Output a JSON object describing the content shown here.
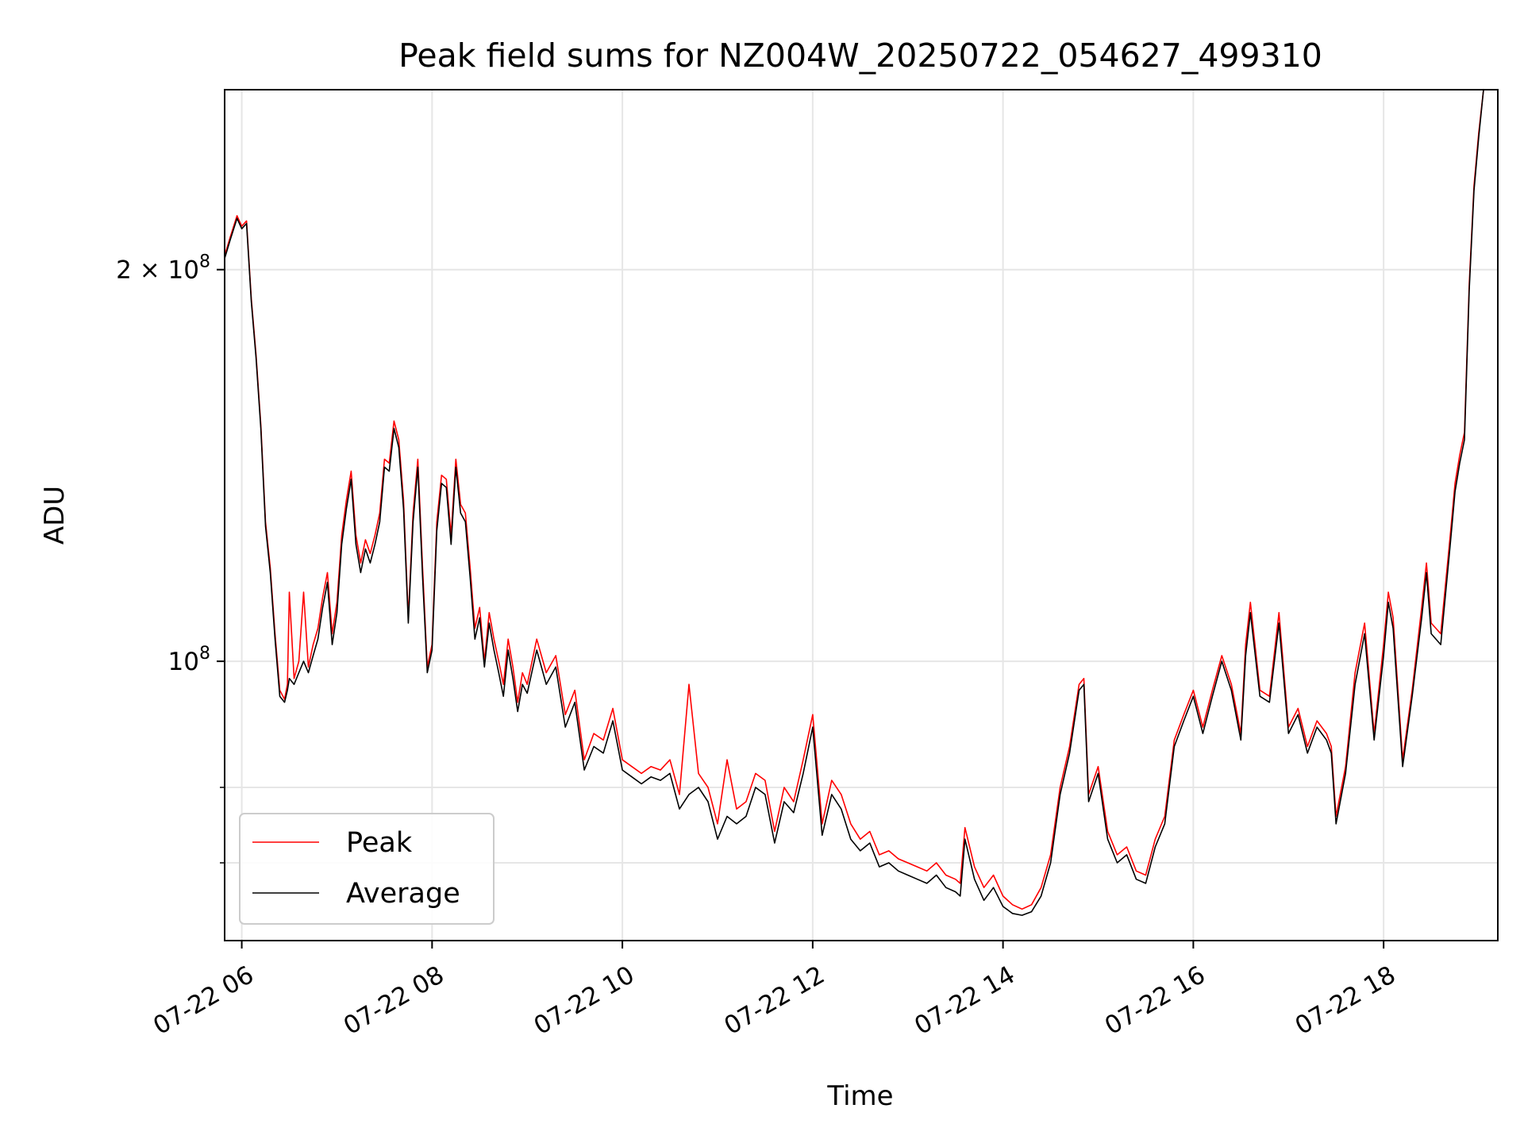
{
  "chart_data": {
    "type": "line",
    "title": "Peak field sums for NZ004W_20250722_054627_499310",
    "xlabel": "Time",
    "ylabel": "ADU",
    "x_unit": "hour of 2025-07-22",
    "xlim": [
      5.82,
      19.2
    ],
    "ylim": [
      61000000,
      275000000
    ],
    "y_scale": "log",
    "grid": true,
    "x_ticks": [
      {
        "value": 6,
        "label": "07-22 06"
      },
      {
        "value": 8,
        "label": "07-22 08"
      },
      {
        "value": 10,
        "label": "07-22 10"
      },
      {
        "value": 12,
        "label": "07-22 12"
      },
      {
        "value": 14,
        "label": "07-22 14"
      },
      {
        "value": 16,
        "label": "07-22 16"
      },
      {
        "value": 18,
        "label": "07-22 18"
      }
    ],
    "y_ticks": [
      {
        "value": 100000000,
        "label_base": "10",
        "label_exp": "8",
        "label_prefix": ""
      },
      {
        "value": 200000000,
        "label_base": "10",
        "label_exp": "8",
        "label_prefix": "2 × "
      }
    ],
    "y_minor_ticks": [
      70000000,
      80000000
    ],
    "legend": {
      "position": "lower-left",
      "entries": [
        {
          "name": "Peak",
          "color": "#ff0000"
        },
        {
          "name": "Average",
          "color": "#000000"
        }
      ]
    },
    "series": [
      {
        "name": "Peak",
        "color": "#ff0000",
        "x": [
          5.82,
          5.88,
          5.95,
          6.0,
          6.05,
          6.1,
          6.15,
          6.2,
          6.25,
          6.3,
          6.35,
          6.4,
          6.45,
          6.48,
          6.5,
          6.55,
          6.6,
          6.65,
          6.7,
          6.75,
          6.8,
          6.85,
          6.9,
          6.95,
          7.0,
          7.05,
          7.1,
          7.15,
          7.2,
          7.25,
          7.3,
          7.35,
          7.4,
          7.45,
          7.5,
          7.55,
          7.6,
          7.65,
          7.7,
          7.75,
          7.8,
          7.85,
          7.9,
          7.95,
          8.0,
          8.05,
          8.1,
          8.15,
          8.2,
          8.25,
          8.3,
          8.35,
          8.4,
          8.45,
          8.5,
          8.55,
          8.6,
          8.65,
          8.7,
          8.75,
          8.8,
          8.85,
          8.9,
          8.95,
          9.0,
          9.1,
          9.2,
          9.3,
          9.4,
          9.5,
          9.6,
          9.7,
          9.8,
          9.9,
          10.0,
          10.1,
          10.2,
          10.3,
          10.4,
          10.5,
          10.6,
          10.7,
          10.8,
          10.9,
          11.0,
          11.1,
          11.2,
          11.3,
          11.4,
          11.5,
          11.6,
          11.7,
          11.8,
          11.9,
          12.0,
          12.1,
          12.2,
          12.3,
          12.4,
          12.5,
          12.6,
          12.7,
          12.8,
          12.9,
          13.0,
          13.1,
          13.2,
          13.3,
          13.4,
          13.5,
          13.55,
          13.6,
          13.7,
          13.8,
          13.9,
          14.0,
          14.1,
          14.2,
          14.3,
          14.4,
          14.5,
          14.6,
          14.7,
          14.8,
          14.85,
          14.9,
          15.0,
          15.1,
          15.2,
          15.3,
          15.4,
          15.5,
          15.6,
          15.7,
          15.8,
          15.9,
          16.0,
          16.1,
          16.2,
          16.3,
          16.4,
          16.5,
          16.55,
          16.6,
          16.7,
          16.8,
          16.9,
          17.0,
          17.1,
          17.2,
          17.3,
          17.4,
          17.45,
          17.5,
          17.6,
          17.7,
          17.8,
          17.9,
          18.0,
          18.05,
          18.1,
          18.2,
          18.3,
          18.4,
          18.45,
          18.5,
          18.6,
          18.7,
          18.75,
          18.8,
          18.85,
          18.9,
          18.95,
          19.0,
          19.05,
          19.1,
          19.2
        ],
        "y": [
          205000000,
          212000000,
          220000000,
          216000000,
          218000000,
          190000000,
          172000000,
          152000000,
          128000000,
          118000000,
          105000000,
          95000000,
          93500000,
          96000000,
          113000000,
          97000000,
          100000000,
          113000000,
          99000000,
          103000000,
          106000000,
          112000000,
          117000000,
          105000000,
          111000000,
          125000000,
          133000000,
          140000000,
          125000000,
          119000000,
          124000000,
          121000000,
          125000000,
          130000000,
          143000000,
          142000000,
          153000000,
          148000000,
          133000000,
          108000000,
          130000000,
          143000000,
          118000000,
          99000000,
          103000000,
          128000000,
          139000000,
          138000000,
          125000000,
          143000000,
          132000000,
          130000000,
          118000000,
          106000000,
          110000000,
          100000000,
          109000000,
          104000000,
          100000000,
          96000000,
          104000000,
          99000000,
          93000000,
          98000000,
          96000000,
          104000000,
          98000000,
          101000000,
          91000000,
          95000000,
          84000000,
          88000000,
          87000000,
          92000000,
          84000000,
          83000000,
          82000000,
          83000000,
          82500000,
          84000000,
          79000000,
          96000000,
          82000000,
          80000000,
          75000000,
          84000000,
          77000000,
          78000000,
          82000000,
          81000000,
          74000000,
          80000000,
          78000000,
          84000000,
          91000000,
          75000000,
          81000000,
          79000000,
          75000000,
          73000000,
          74000000,
          71000000,
          71500000,
          70500000,
          70000000,
          69500000,
          69000000,
          70000000,
          68500000,
          68000000,
          67500000,
          74500000,
          69500000,
          67000000,
          68500000,
          66000000,
          65000000,
          64500000,
          65000000,
          67000000,
          71000000,
          80000000,
          86000000,
          96000000,
          97000000,
          79000000,
          83000000,
          74000000,
          71000000,
          72000000,
          69000000,
          68500000,
          73000000,
          76000000,
          87000000,
          91000000,
          95000000,
          89000000,
          95000000,
          101000000,
          96000000,
          88000000,
          103000000,
          111000000,
          95000000,
          94000000,
          109000000,
          89000000,
          92000000,
          86000000,
          90000000,
          88000000,
          86000000,
          76000000,
          83000000,
          98000000,
          107000000,
          88000000,
          103000000,
          113000000,
          108000000,
          84000000,
          95000000,
          110000000,
          119000000,
          107000000,
          105000000,
          125000000,
          137000000,
          144000000,
          150000000,
          195000000,
          232000000,
          255000000,
          275000000,
          275000000,
          275000000
        ]
      },
      {
        "name": "Average",
        "color": "#000000",
        "x": [
          5.82,
          5.88,
          5.95,
          6.0,
          6.05,
          6.1,
          6.15,
          6.2,
          6.25,
          6.3,
          6.35,
          6.4,
          6.45,
          6.48,
          6.5,
          6.55,
          6.6,
          6.65,
          6.7,
          6.75,
          6.8,
          6.85,
          6.9,
          6.95,
          7.0,
          7.05,
          7.1,
          7.15,
          7.2,
          7.25,
          7.3,
          7.35,
          7.4,
          7.45,
          7.5,
          7.55,
          7.6,
          7.65,
          7.7,
          7.75,
          7.8,
          7.85,
          7.9,
          7.95,
          8.0,
          8.05,
          8.1,
          8.15,
          8.2,
          8.25,
          8.3,
          8.35,
          8.4,
          8.45,
          8.5,
          8.55,
          8.6,
          8.65,
          8.7,
          8.75,
          8.8,
          8.85,
          8.9,
          8.95,
          9.0,
          9.1,
          9.2,
          9.3,
          9.4,
          9.5,
          9.6,
          9.7,
          9.8,
          9.9,
          10.0,
          10.1,
          10.2,
          10.3,
          10.4,
          10.5,
          10.6,
          10.7,
          10.8,
          10.9,
          11.0,
          11.1,
          11.2,
          11.3,
          11.4,
          11.5,
          11.6,
          11.7,
          11.8,
          11.9,
          12.0,
          12.1,
          12.2,
          12.3,
          12.4,
          12.5,
          12.6,
          12.7,
          12.8,
          12.9,
          13.0,
          13.1,
          13.2,
          13.3,
          13.4,
          13.5,
          13.55,
          13.6,
          13.7,
          13.8,
          13.9,
          14.0,
          14.1,
          14.2,
          14.3,
          14.4,
          14.5,
          14.6,
          14.7,
          14.8,
          14.85,
          14.9,
          15.0,
          15.1,
          15.2,
          15.3,
          15.4,
          15.5,
          15.6,
          15.7,
          15.8,
          15.9,
          16.0,
          16.1,
          16.2,
          16.3,
          16.4,
          16.5,
          16.55,
          16.6,
          16.7,
          16.8,
          16.9,
          17.0,
          17.1,
          17.2,
          17.3,
          17.4,
          17.45,
          17.5,
          17.6,
          17.7,
          17.8,
          17.9,
          18.0,
          18.05,
          18.1,
          18.2,
          18.3,
          18.4,
          18.45,
          18.5,
          18.6,
          18.7,
          18.75,
          18.8,
          18.85,
          18.9,
          18.95,
          19.0,
          19.05,
          19.1,
          19.2
        ],
        "y": [
          204000000,
          211000000,
          219000000,
          215000000,
          217000000,
          189000000,
          171000000,
          151000000,
          127000000,
          117000000,
          104000000,
          94000000,
          93000000,
          95000000,
          97000000,
          96000000,
          98000000,
          100000000,
          98000000,
          101000000,
          104000000,
          110000000,
          115000000,
          103000000,
          109000000,
          123000000,
          131000000,
          138000000,
          123000000,
          117000000,
          122000000,
          119000000,
          123000000,
          128000000,
          141000000,
          140000000,
          151000000,
          146000000,
          131000000,
          107000000,
          128000000,
          141000000,
          116000000,
          98000000,
          102000000,
          126000000,
          137000000,
          136000000,
          123000000,
          141000000,
          130000000,
          128000000,
          116000000,
          104000000,
          108000000,
          99000000,
          107000000,
          102000000,
          98000000,
          94000000,
          102000000,
          97000000,
          91500000,
          96000000,
          94500000,
          102000000,
          96000000,
          99000000,
          89000000,
          93000000,
          82500000,
          86000000,
          85000000,
          90000000,
          82500000,
          81500000,
          80500000,
          81500000,
          81000000,
          82000000,
          77000000,
          79000000,
          80000000,
          78000000,
          73000000,
          76000000,
          75000000,
          76000000,
          80000000,
          79000000,
          72500000,
          78000000,
          76500000,
          82000000,
          89000000,
          73500000,
          79000000,
          77000000,
          73000000,
          71500000,
          72500000,
          69500000,
          70000000,
          69000000,
          68500000,
          68000000,
          67500000,
          68500000,
          67000000,
          66500000,
          66000000,
          73000000,
          68000000,
          65500000,
          67000000,
          64800000,
          64000000,
          63800000,
          64200000,
          66000000,
          70000000,
          79000000,
          85000000,
          95000000,
          96000000,
          78000000,
          82000000,
          73000000,
          70000000,
          71000000,
          68000000,
          67500000,
          72000000,
          75000000,
          86000000,
          90000000,
          94000000,
          88000000,
          94000000,
          100000000,
          95000000,
          87000000,
          101000000,
          109000000,
          94000000,
          93000000,
          107000000,
          88000000,
          91000000,
          85000000,
          89000000,
          87000000,
          85000000,
          75000000,
          82000000,
          96000000,
          105000000,
          87000000,
          101000000,
          111000000,
          106000000,
          83000000,
          94000000,
          108000000,
          117000000,
          105000000,
          103000000,
          123000000,
          135000000,
          142000000,
          148000000,
          193000000,
          230000000,
          253000000,
          275000000,
          275000000,
          275000000
        ]
      }
    ]
  }
}
